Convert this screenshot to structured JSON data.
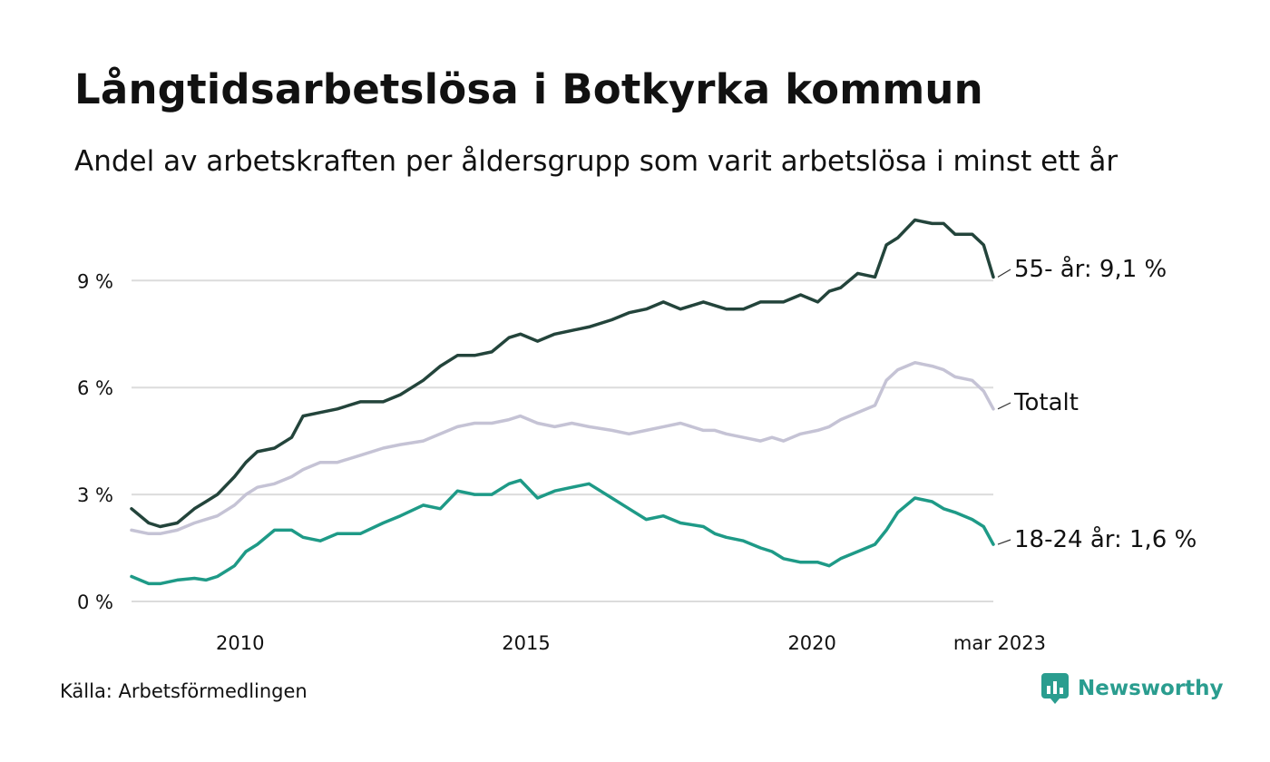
{
  "title": "Långtidsarbetslösa i Botkyrka kommun",
  "subtitle": "Andel av arbetskraften per åldersgrupp som varit arbetslösa i minst ett år",
  "source": "Källa: Arbetsförmedlingen",
  "brand": {
    "name": "Newsworthy",
    "icon": "newsworthy-logo-icon",
    "color": "#2a9d8f"
  },
  "chart_data": {
    "type": "line",
    "y_ticks": [
      {
        "value": 0,
        "label": "0 %"
      },
      {
        "value": 3,
        "label": "3 %"
      },
      {
        "value": 6,
        "label": "6 %"
      },
      {
        "value": 9,
        "label": "9 %"
      }
    ],
    "x_ticks": [
      {
        "value": 2010,
        "label": "2010"
      },
      {
        "value": 2015,
        "label": "2015"
      },
      {
        "value": 2020,
        "label": "2020"
      },
      {
        "value": 2023.17,
        "label": "mar 2023"
      }
    ],
    "xlim": [
      2008.1,
      2023.17
    ],
    "ylim": [
      0,
      11
    ],
    "grid": true,
    "series": [
      {
        "name": "55- år",
        "end_label": "55- år: 9,1 %",
        "color": "#23443b",
        "x": [
          2008.1,
          2008.4,
          2008.6,
          2008.9,
          2009.2,
          2009.4,
          2009.6,
          2009.9,
          2010.1,
          2010.3,
          2010.6,
          2010.9,
          2011.1,
          2011.4,
          2011.7,
          2012.1,
          2012.5,
          2012.8,
          2013.2,
          2013.5,
          2013.8,
          2014.1,
          2014.4,
          2014.7,
          2014.9,
          2015.2,
          2015.5,
          2015.8,
          2016.1,
          2016.5,
          2016.8,
          2017.1,
          2017.4,
          2017.7,
          2018.1,
          2018.3,
          2018.5,
          2018.8,
          2019.1,
          2019.3,
          2019.5,
          2019.8,
          2020.1,
          2020.3,
          2020.5,
          2020.8,
          2021.1,
          2021.3,
          2021.5,
          2021.8,
          2022.1,
          2022.3,
          2022.5,
          2022.8,
          2023.0,
          2023.17
        ],
        "y": [
          2.6,
          2.2,
          2.1,
          2.2,
          2.6,
          2.8,
          3.0,
          3.5,
          3.9,
          4.2,
          4.3,
          4.6,
          5.2,
          5.3,
          5.4,
          5.6,
          5.6,
          5.8,
          6.2,
          6.6,
          6.9,
          6.9,
          7.0,
          7.4,
          7.5,
          7.3,
          7.5,
          7.6,
          7.7,
          7.9,
          8.1,
          8.2,
          8.4,
          8.2,
          8.4,
          8.3,
          8.2,
          8.2,
          8.4,
          8.4,
          8.4,
          8.6,
          8.4,
          8.7,
          8.8,
          9.2,
          9.1,
          10.0,
          10.2,
          10.7,
          10.6,
          10.6,
          10.3,
          10.3,
          10.0,
          9.1
        ]
      },
      {
        "name": "Totalt",
        "end_label": "Totalt",
        "color": "#c5c3d5",
        "x": [
          2008.1,
          2008.4,
          2008.6,
          2008.9,
          2009.2,
          2009.4,
          2009.6,
          2009.9,
          2010.1,
          2010.3,
          2010.6,
          2010.9,
          2011.1,
          2011.4,
          2011.7,
          2012.1,
          2012.5,
          2012.8,
          2013.2,
          2013.5,
          2013.8,
          2014.1,
          2014.4,
          2014.7,
          2014.9,
          2015.2,
          2015.5,
          2015.8,
          2016.1,
          2016.5,
          2016.8,
          2017.1,
          2017.4,
          2017.7,
          2018.1,
          2018.3,
          2018.5,
          2018.8,
          2019.1,
          2019.3,
          2019.5,
          2019.8,
          2020.1,
          2020.3,
          2020.5,
          2020.8,
          2021.1,
          2021.3,
          2021.5,
          2021.8,
          2022.1,
          2022.3,
          2022.5,
          2022.8,
          2023.0,
          2023.17
        ],
        "y": [
          2.0,
          1.9,
          1.9,
          2.0,
          2.2,
          2.3,
          2.4,
          2.7,
          3.0,
          3.2,
          3.3,
          3.5,
          3.7,
          3.9,
          3.9,
          4.1,
          4.3,
          4.4,
          4.5,
          4.7,
          4.9,
          5.0,
          5.0,
          5.1,
          5.2,
          5.0,
          4.9,
          5.0,
          4.9,
          4.8,
          4.7,
          4.8,
          4.9,
          5.0,
          4.8,
          4.8,
          4.7,
          4.6,
          4.5,
          4.6,
          4.5,
          4.7,
          4.8,
          4.9,
          5.1,
          5.3,
          5.5,
          6.2,
          6.5,
          6.7,
          6.6,
          6.5,
          6.3,
          6.2,
          5.9,
          5.4
        ]
      },
      {
        "name": "18-24 år",
        "end_label": "18-24 år: 1,6 %",
        "color": "#1e9a87",
        "x": [
          2008.1,
          2008.4,
          2008.6,
          2008.9,
          2009.2,
          2009.4,
          2009.6,
          2009.9,
          2010.1,
          2010.3,
          2010.6,
          2010.9,
          2011.1,
          2011.4,
          2011.7,
          2012.1,
          2012.5,
          2012.8,
          2013.2,
          2013.5,
          2013.8,
          2014.1,
          2014.4,
          2014.7,
          2014.9,
          2015.2,
          2015.5,
          2015.8,
          2016.1,
          2016.5,
          2016.8,
          2017.1,
          2017.4,
          2017.7,
          2018.1,
          2018.3,
          2018.5,
          2018.8,
          2019.1,
          2019.3,
          2019.5,
          2019.8,
          2020.1,
          2020.3,
          2020.5,
          2020.8,
          2021.1,
          2021.3,
          2021.5,
          2021.8,
          2022.1,
          2022.3,
          2022.5,
          2022.8,
          2023.0,
          2023.17
        ],
        "y": [
          0.7,
          0.5,
          0.5,
          0.6,
          0.65,
          0.6,
          0.7,
          1.0,
          1.4,
          1.6,
          2.0,
          2.0,
          1.8,
          1.7,
          1.9,
          1.9,
          2.2,
          2.4,
          2.7,
          2.6,
          3.1,
          3.0,
          3.0,
          3.3,
          3.4,
          2.9,
          3.1,
          3.2,
          3.3,
          2.9,
          2.6,
          2.3,
          2.4,
          2.2,
          2.1,
          1.9,
          1.8,
          1.7,
          1.5,
          1.4,
          1.2,
          1.1,
          1.1,
          1.0,
          1.2,
          1.4,
          1.6,
          2.0,
          2.5,
          2.9,
          2.8,
          2.6,
          2.5,
          2.3,
          2.1,
          1.6
        ]
      }
    ]
  }
}
